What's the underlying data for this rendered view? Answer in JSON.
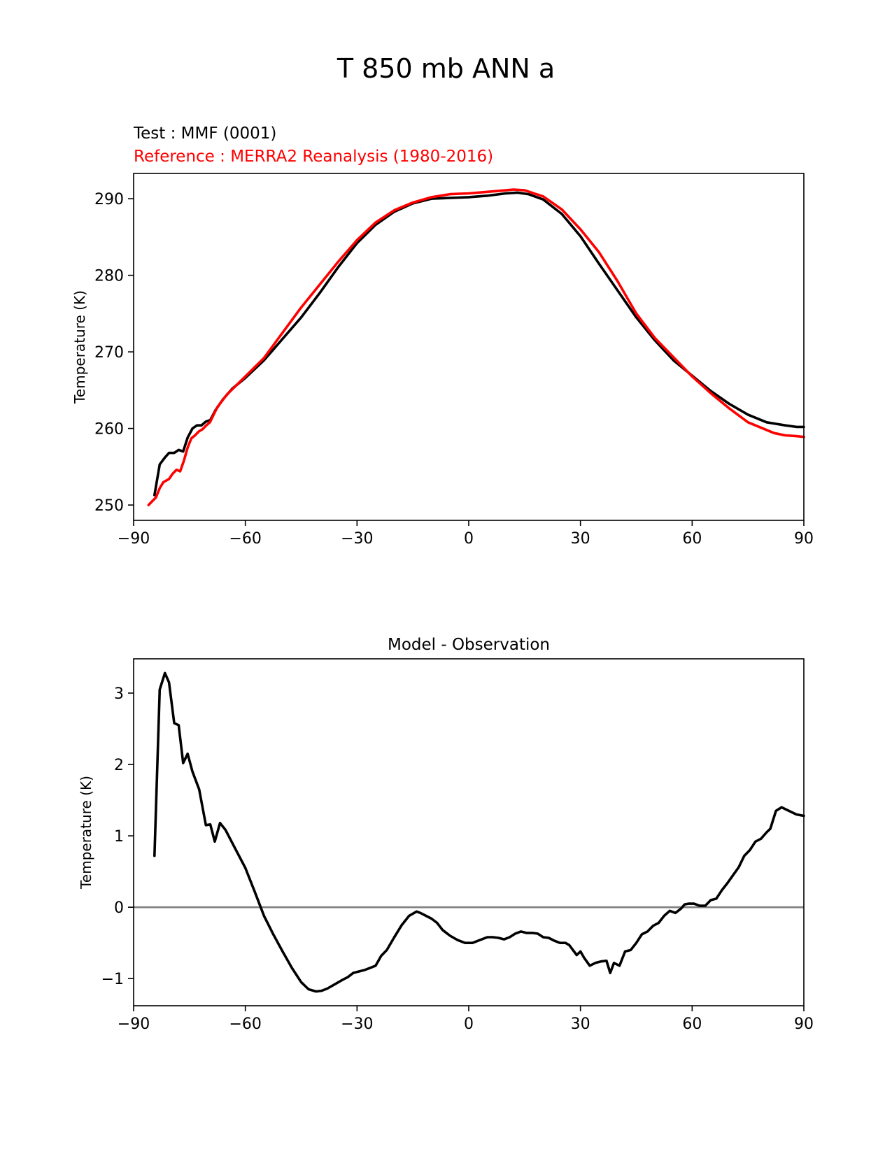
{
  "figure": {
    "title": "T 850 mb ANN a",
    "test_label": "Test : MMF (0001)",
    "reference_label": "Reference : MERRA2 Reanalysis (1980-2016)"
  },
  "colors": {
    "test": "#000000",
    "reference": "#ff0000",
    "zero_line": "#808080",
    "axes": "#000000"
  },
  "chart_data": [
    {
      "type": "line",
      "title": "",
      "xlabel": "",
      "ylabel": "Temperature (K)",
      "xlim": [
        -90,
        90
      ],
      "ylim": [
        248,
        293.3
      ],
      "xticks": [
        -90,
        -60,
        -30,
        0,
        30,
        60,
        90
      ],
      "xtick_labels": [
        "−90",
        "−60",
        "−30",
        "0",
        "30",
        "60",
        "90"
      ],
      "yticks": [
        250,
        260,
        270,
        280,
        290
      ],
      "grid": false,
      "series": [
        {
          "name": "Test : MMF (0001)",
          "color": "#000000",
          "x": [
            -84.4,
            -83.0,
            -81.6,
            -80.5,
            -79.1,
            -77.9,
            -76.7,
            -75.5,
            -74.2,
            -73.0,
            -71.8,
            -70.6,
            -69.4,
            -68.0,
            -66.0,
            -63.5,
            -60.0,
            -55.0,
            -50.0,
            -45.0,
            -40.0,
            -35.0,
            -30.0,
            -25.0,
            -20.0,
            -15.0,
            -10.0,
            -5.0,
            0.0,
            5.0,
            10.0,
            13.0,
            16.0,
            20.0,
            25.0,
            30.0,
            35.0,
            40.0,
            45.0,
            50.0,
            55.0,
            60.0,
            65.0,
            70.0,
            75.0,
            80.0,
            82.5,
            85.0,
            88.0,
            90.0
          ],
          "y": [
            251.3,
            255.3,
            256.2,
            256.8,
            256.8,
            257.2,
            257.0,
            258.8,
            260.0,
            260.4,
            260.4,
            260.9,
            261.1,
            262.4,
            263.8,
            265.2,
            266.6,
            268.9,
            271.7,
            274.5,
            277.7,
            281.1,
            284.2,
            286.6,
            288.3,
            289.4,
            290.0,
            290.1,
            290.2,
            290.4,
            290.7,
            290.8,
            290.6,
            289.9,
            288.0,
            285.1,
            281.5,
            278.0,
            274.5,
            271.5,
            268.9,
            266.9,
            264.9,
            263.2,
            261.8,
            260.8,
            260.6,
            260.4,
            260.2,
            260.2
          ]
        },
        {
          "name": "Reference : MERRA2 Reanalysis (1980-2016)",
          "color": "#ff0000",
          "x": [
            -86.0,
            -85.0,
            -84.0,
            -83.0,
            -82.0,
            -80.5,
            -79.5,
            -78.5,
            -77.5,
            -76.5,
            -75.5,
            -74.5,
            -73.5,
            -72.5,
            -71.5,
            -70.5,
            -69.5,
            -68.5,
            -67.5,
            -65.0,
            -62.5,
            -60.0,
            -55.0,
            -50.0,
            -45.0,
            -40.0,
            -35.0,
            -30.0,
            -25.0,
            -20.0,
            -15.0,
            -10.0,
            -5.0,
            0.0,
            5.0,
            10.0,
            12.0,
            15.0,
            20.0,
            25.0,
            30.0,
            35.0,
            40.0,
            45.0,
            50.0,
            55.0,
            60.0,
            65.0,
            70.0,
            75.0,
            80.0,
            82.0,
            85.0,
            88.0,
            90.0
          ],
          "y": [
            250.0,
            250.5,
            251.0,
            252.2,
            253.0,
            253.4,
            254.1,
            254.6,
            254.4,
            255.8,
            257.5,
            258.7,
            259.1,
            259.6,
            259.9,
            260.4,
            260.8,
            261.8,
            262.8,
            264.4,
            265.6,
            266.8,
            269.2,
            272.5,
            275.8,
            278.8,
            281.8,
            284.6,
            286.9,
            288.5,
            289.5,
            290.2,
            290.6,
            290.7,
            290.9,
            291.1,
            291.2,
            291.1,
            290.3,
            288.6,
            286.0,
            283.0,
            279.2,
            275.0,
            271.8,
            269.3,
            266.8,
            264.6,
            262.6,
            260.8,
            259.8,
            259.4,
            259.1,
            259.0,
            258.9
          ]
        }
      ]
    },
    {
      "type": "line",
      "title": "Model - Observation",
      "xlabel": "",
      "ylabel": "Temperature (K)",
      "xlim": [
        -90,
        90
      ],
      "ylim": [
        -1.38,
        3.48
      ],
      "xticks": [
        -90,
        -60,
        -30,
        0,
        30,
        60,
        90
      ],
      "xtick_labels": [
        "−90",
        "−60",
        "−30",
        "0",
        "30",
        "60",
        "90"
      ],
      "yticks": [
        -1,
        0,
        1,
        2,
        3
      ],
      "ytick_labels": [
        "−1",
        "0",
        "1",
        "2",
        "3"
      ],
      "grid": false,
      "reference_line": 0,
      "series": [
        {
          "name": "",
          "color": "#000000",
          "x": [
            -84.4,
            -83.0,
            -81.6,
            -80.5,
            -79.1,
            -77.9,
            -76.7,
            -75.5,
            -74.2,
            -72.4,
            -70.6,
            -69.4,
            -68.2,
            -66.8,
            -65.3,
            -63.0,
            -60.0,
            -57.5,
            -55.0,
            -52.5,
            -50.0,
            -47.5,
            -45.0,
            -43.0,
            -41.0,
            -39.5,
            -38.0,
            -36.0,
            -34.0,
            -32.5,
            -31.0,
            -29.5,
            -28.0,
            -26.5,
            -25.0,
            -23.5,
            -22.0,
            -20.0,
            -18.0,
            -16.0,
            -14.0,
            -13.0,
            -11.5,
            -10.0,
            -8.5,
            -7.0,
            -5.0,
            -3.0,
            -1.0,
            0.0,
            1.0,
            3.0,
            5.0,
            6.5,
            8.0,
            9.5,
            11.0,
            12.5,
            14.0,
            15.5,
            17.0,
            18.5,
            20.0,
            21.5,
            23.0,
            24.5,
            26.0,
            27.0,
            28.0,
            29.0,
            30.0,
            31.0,
            32.5,
            34.0,
            35.5,
            37.0,
            38.0,
            39.0,
            40.5,
            42.0,
            43.5,
            45.0,
            46.5,
            48.0,
            49.5,
            51.0,
            52.5,
            54.0,
            55.5,
            57.0,
            58.0,
            59.0,
            60.5,
            62.0,
            63.5,
            65.0,
            66.5,
            68.0,
            69.5,
            71.0,
            72.5,
            74.0,
            75.5,
            77.0,
            78.5,
            80.0,
            81.0,
            82.5,
            84.0,
            86.0,
            88.0,
            90.0
          ],
          "y": [
            0.72,
            3.05,
            3.28,
            3.15,
            2.58,
            2.55,
            2.02,
            2.15,
            1.9,
            1.65,
            1.15,
            1.16,
            0.92,
            1.18,
            1.08,
            0.85,
            0.55,
            0.22,
            -0.12,
            -0.38,
            -0.62,
            -0.85,
            -1.05,
            -1.15,
            -1.18,
            -1.17,
            -1.14,
            -1.08,
            -1.02,
            -0.98,
            -0.92,
            -0.9,
            -0.88,
            -0.85,
            -0.82,
            -0.68,
            -0.6,
            -0.42,
            -0.25,
            -0.12,
            -0.06,
            -0.08,
            -0.12,
            -0.16,
            -0.22,
            -0.32,
            -0.4,
            -0.46,
            -0.5,
            -0.5,
            -0.5,
            -0.46,
            -0.42,
            -0.42,
            -0.43,
            -0.45,
            -0.42,
            -0.37,
            -0.34,
            -0.36,
            -0.36,
            -0.37,
            -0.42,
            -0.43,
            -0.47,
            -0.5,
            -0.5,
            -0.53,
            -0.6,
            -0.67,
            -0.62,
            -0.71,
            -0.82,
            -0.78,
            -0.76,
            -0.75,
            -0.92,
            -0.78,
            -0.82,
            -0.62,
            -0.6,
            -0.5,
            -0.38,
            -0.34,
            -0.26,
            -0.22,
            -0.12,
            -0.05,
            -0.08,
            -0.02,
            0.04,
            0.05,
            0.05,
            0.02,
            0.02,
            0.1,
            0.12,
            0.24,
            0.34,
            0.45,
            0.56,
            0.72,
            0.8,
            0.92,
            0.96,
            1.05,
            1.1,
            1.35,
            1.4,
            1.35,
            1.3,
            1.28
          ]
        }
      ]
    }
  ]
}
